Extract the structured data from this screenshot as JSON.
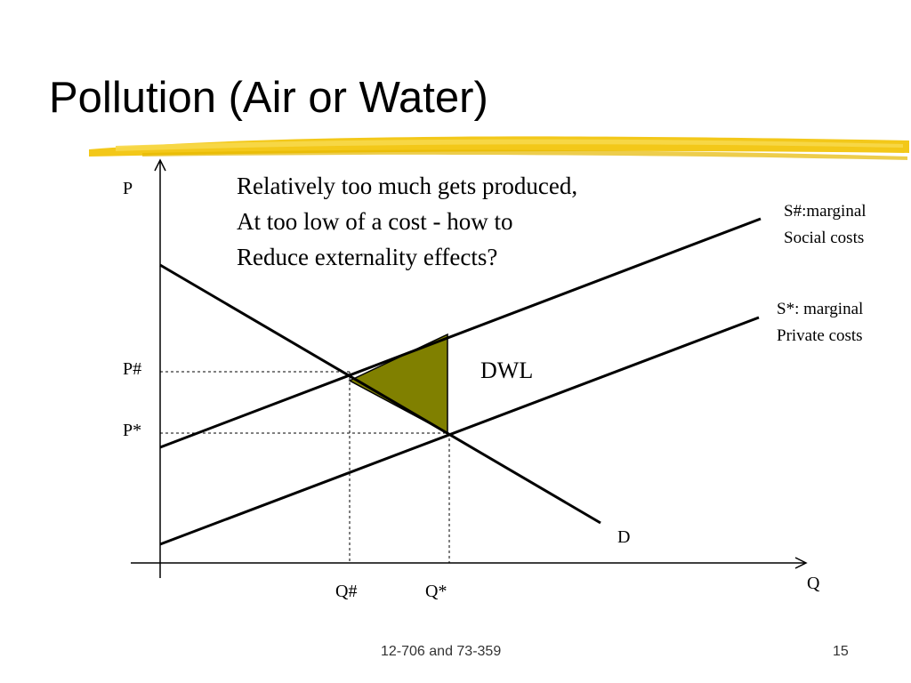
{
  "slide": {
    "title": "Pollution (Air or Water)",
    "footer_course": "12-706 and 73-359",
    "page_number": "15",
    "underline_color": "#F2C200"
  },
  "diagram": {
    "axis_price_label": "P",
    "axis_quantity_label": "Q",
    "price_hash_label": "P#",
    "price_star_label": "P*",
    "quantity_hash_label": "Q#",
    "quantity_star_label": "Q*",
    "demand_label": "D",
    "social_supply_label": [
      "S#:marginal",
      "Social costs"
    ],
    "private_supply_label": [
      "S*: marginal",
      "Private costs"
    ],
    "dwl_label": "DWL",
    "dwl_fill_color": "#808000",
    "annotation": [
      "Relatively too much gets produced,",
      "At too low of a cost - how to",
      "Reduce externality effects?"
    ]
  }
}
